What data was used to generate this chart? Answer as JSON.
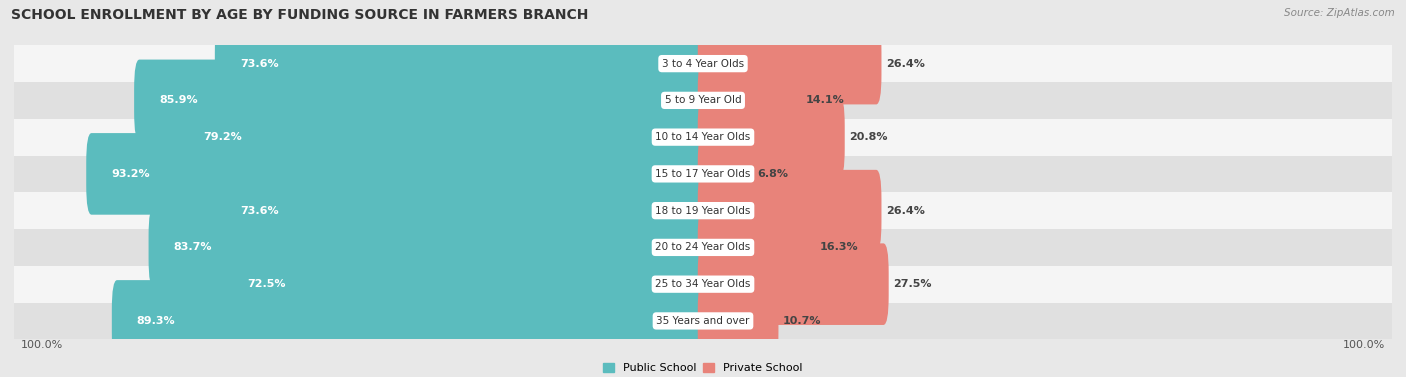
{
  "title": "SCHOOL ENROLLMENT BY AGE BY FUNDING SOURCE IN FARMERS BRANCH",
  "source": "Source: ZipAtlas.com",
  "categories": [
    "3 to 4 Year Olds",
    "5 to 9 Year Old",
    "10 to 14 Year Olds",
    "15 to 17 Year Olds",
    "18 to 19 Year Olds",
    "20 to 24 Year Olds",
    "25 to 34 Year Olds",
    "35 Years and over"
  ],
  "public_pct": [
    73.6,
    85.9,
    79.2,
    93.2,
    73.6,
    83.7,
    72.5,
    89.3
  ],
  "private_pct": [
    26.4,
    14.1,
    20.8,
    6.8,
    26.4,
    16.3,
    27.5,
    10.7
  ],
  "public_color": "#5bbcbe",
  "private_color": "#e8837a",
  "bg_color": "#e8e8e8",
  "row_bg_odd": "#f5f5f5",
  "row_bg_even": "#e0e0e0",
  "axis_label_left": "100.0%",
  "axis_label_right": "100.0%",
  "legend_public": "Public School",
  "legend_private": "Private School",
  "title_fontsize": 10,
  "source_fontsize": 7.5,
  "bar_label_fontsize": 8,
  "cat_label_fontsize": 7.5,
  "axis_fontsize": 8
}
